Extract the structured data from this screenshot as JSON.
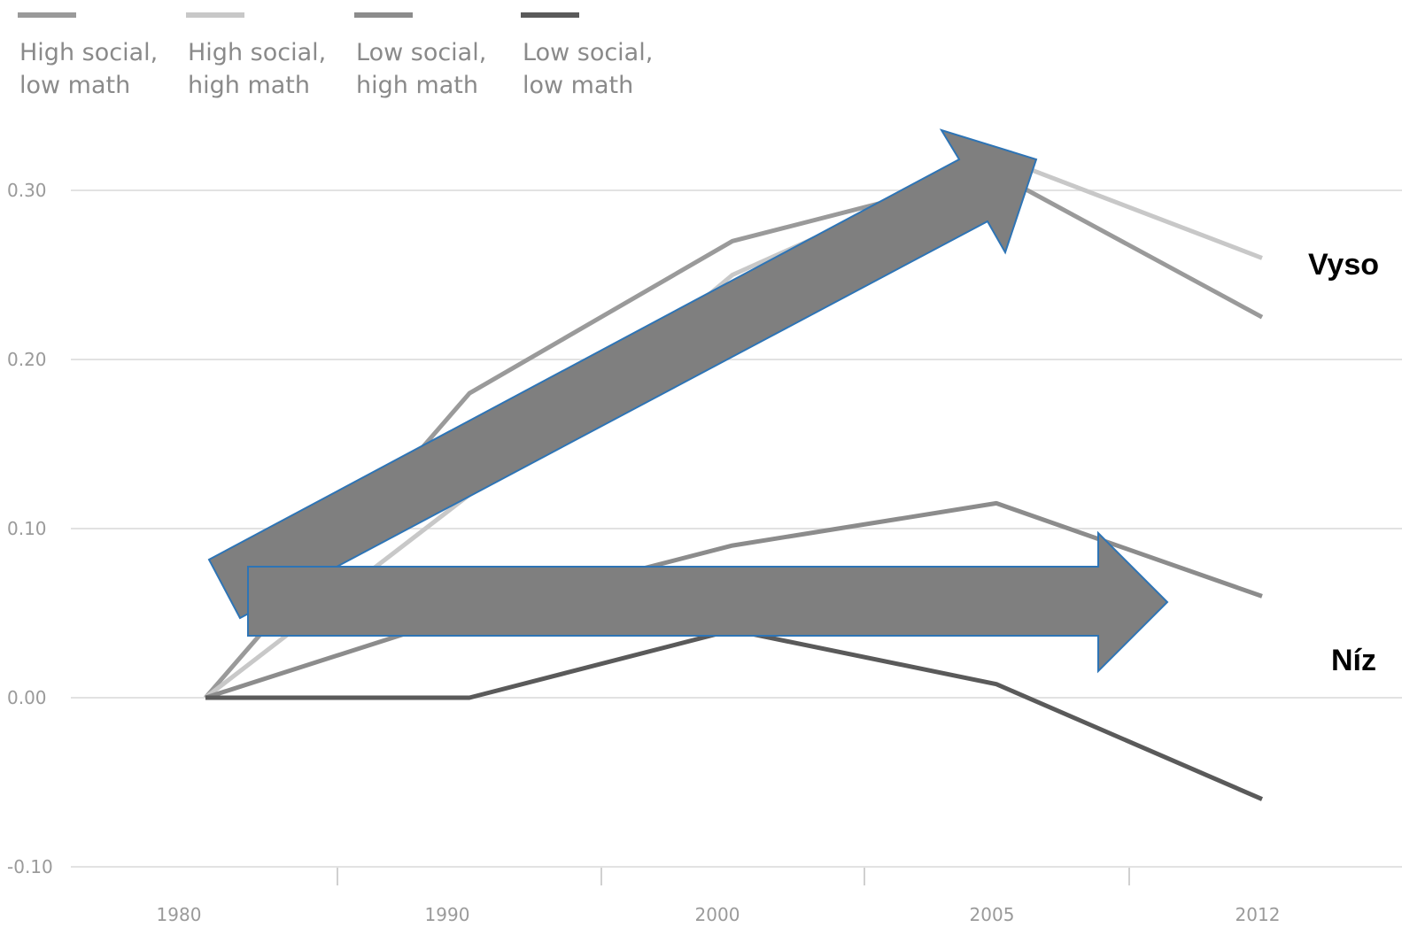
{
  "chart_data": {
    "type": "line",
    "x": [
      "1980",
      "1990",
      "2000",
      "2005",
      "2012"
    ],
    "y_ticks": [
      "0.30",
      "0.20",
      "0.10",
      "0.00",
      "-0.10"
    ],
    "ylim": [
      -0.1,
      0.3
    ],
    "grid": true,
    "legend_position": "top-left",
    "series": [
      {
        "name": "High social, low math",
        "legend_lines": [
          "High social,",
          "low math"
        ],
        "color": "#9a9a9a",
        "values": [
          0.0,
          0.18,
          0.27,
          0.31,
          0.225
        ]
      },
      {
        "name": "High social, high math",
        "legend_lines": [
          "High social,",
          "high math"
        ],
        "color": "#c8c8c8",
        "values": [
          0.0,
          0.12,
          0.25,
          0.32,
          0.26
        ]
      },
      {
        "name": "Low social, high math",
        "legend_lines": [
          "Low social,",
          "high math"
        ],
        "color": "#8c8c8c",
        "values": [
          0.0,
          0.05,
          0.09,
          0.115,
          0.06
        ]
      },
      {
        "name": "Low social, low math",
        "legend_lines": [
          "Low social,",
          "low math"
        ],
        "color": "#5a5a5a",
        "values": [
          0.0,
          0.0,
          0.04,
          0.008,
          -0.06
        ]
      }
    ],
    "annotations": [
      {
        "text": "Vyso",
        "level": 0.26
      },
      {
        "text": "Níz",
        "level": 0.02
      }
    ],
    "arrow_color": "#7f7f7f",
    "arrow_stroke": "#2e74b5"
  }
}
